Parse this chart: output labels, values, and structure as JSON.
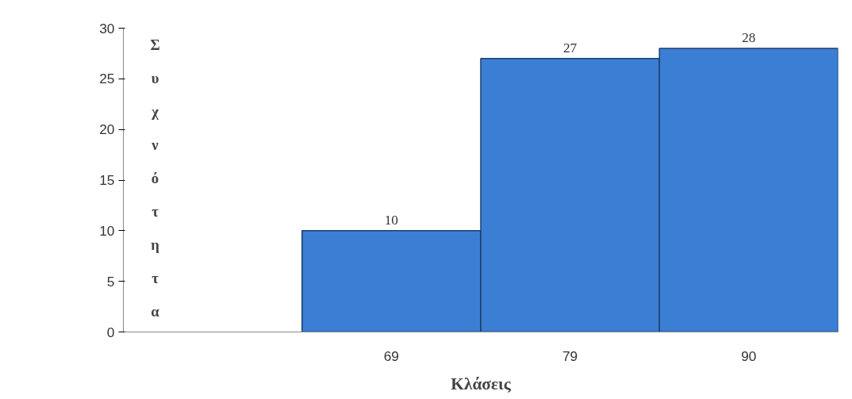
{
  "chart_data": {
    "type": "bar",
    "categories": [
      null,
      "69",
      "79",
      "90"
    ],
    "values": [
      null,
      10,
      27,
      28
    ],
    "color": "#3b7fd4",
    "xlabel": "Κλάσεις",
    "ylabel": "Συχνότητα",
    "ylim": [
      0,
      30
    ],
    "yticks": [
      0,
      5,
      10,
      15,
      20,
      25,
      30
    ],
    "grid": false,
    "data_labels": true
  }
}
